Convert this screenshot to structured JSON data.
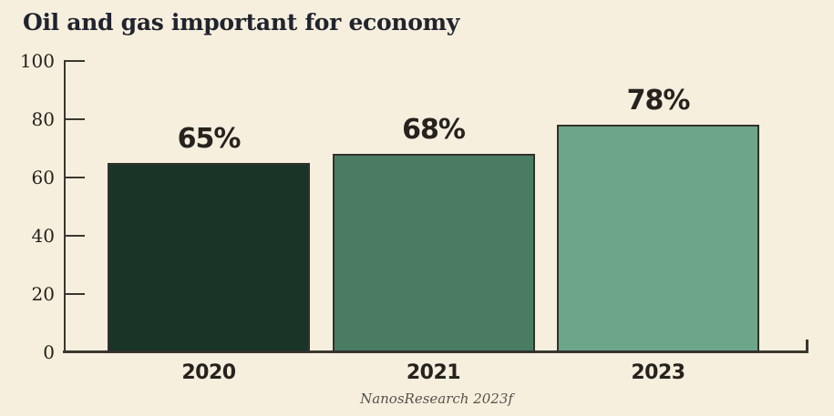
{
  "title": "Oil and gas important for economy",
  "source": "NanosResearch 2023f",
  "colors": {
    "background": "#f7efde",
    "axis": "#3a382f",
    "title_text": "#20242e",
    "tick_text": "#23211b",
    "bar_label_text": "#26231e",
    "source_text": "#55514a",
    "bar_border": "#32312b",
    "bar_fills": [
      "#1a3428",
      "#4a7c64",
      "#6da58b"
    ]
  },
  "chart_data": {
    "type": "bar",
    "title": "Oil and gas important for economy",
    "categories": [
      "2020",
      "2021",
      "2023"
    ],
    "values": [
      65,
      68,
      78
    ],
    "value_labels": [
      "65%",
      "68%",
      "78%"
    ],
    "xlabel": "",
    "ylabel": "",
    "ylim": [
      0,
      100
    ],
    "yticks": [
      0,
      20,
      40,
      60,
      80,
      100
    ],
    "grid": false,
    "legend": false,
    "source": "NanosResearch 2023f"
  }
}
